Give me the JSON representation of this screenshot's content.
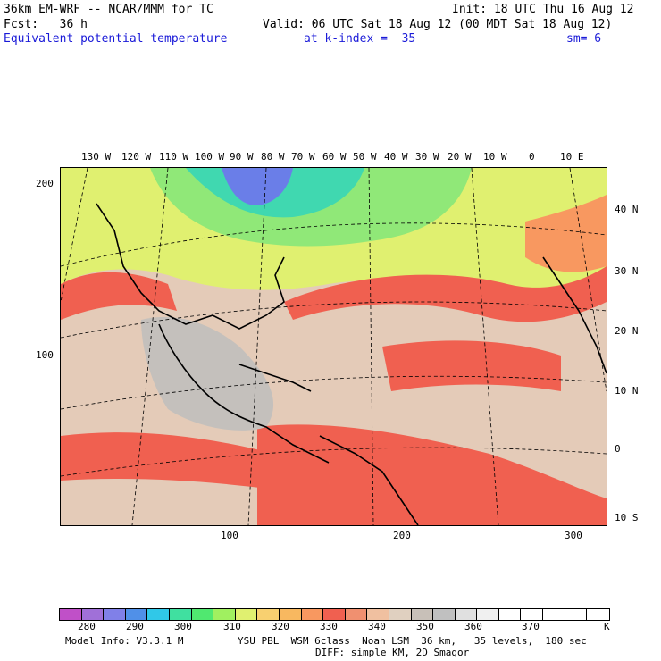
{
  "header": {
    "line1_left": "36km EM-WRF -- NCAR/MMM for TC",
    "line1_right": "Init: 18 UTC Thu 16 Aug 12",
    "line2_left": "Fcst:   36 h",
    "line2_right": "Valid: 06 UTC Sat 18 Aug 12 (00 MDT Sat 18 Aug 12)",
    "line3_field": "Equivalent potential temperature",
    "line3_level": "at k-index =  35",
    "line3_smooth": "sm= 6"
  },
  "map": {
    "top_lon_labels": [
      "130 W",
      "120 W",
      "110 W",
      "100 W",
      "90 W",
      "80 W",
      "70 W",
      "60 W",
      "50 W",
      "40 W",
      "30 W",
      "20 W",
      "10 W",
      "0",
      "10 E"
    ],
    "right_lat_labels": [
      "40 N",
      "30 N",
      "20 N",
      "10 N",
      "0",
      "10 S"
    ],
    "left_grid_labels": [
      "200",
      "100"
    ],
    "bottom_grid_labels": [
      "100",
      "200",
      "300"
    ]
  },
  "colorbar": {
    "colors": [
      "#c050c8",
      "#a070d8",
      "#8080e8",
      "#5090e8",
      "#30c8e8",
      "#40e0a0",
      "#50e870",
      "#a0f060",
      "#e0f070",
      "#f8d070",
      "#f8b860",
      "#f89860",
      "#f06050",
      "#f09070",
      "#f0c0a0",
      "#e0d0c0",
      "#c8c0b8",
      "#c0c0c0",
      "#e0e0e0",
      "#f0f0f0",
      "#ffffff",
      "#ffffff",
      "#ffffff",
      "#ffffff",
      "#ffffff"
    ],
    "labels": [
      "280",
      "290",
      "300",
      "310",
      "320",
      "330",
      "340",
      "350",
      "360",
      "370"
    ],
    "unit": "K"
  },
  "footer": {
    "model_info": "Model Info: V3.3.1 M",
    "physics": "YSU PBL  WSM 6class  Noah LSM  36 km,   35 levels,  180 sec",
    "diffusion": "DIFF: simple KM, 2D Smagor"
  }
}
